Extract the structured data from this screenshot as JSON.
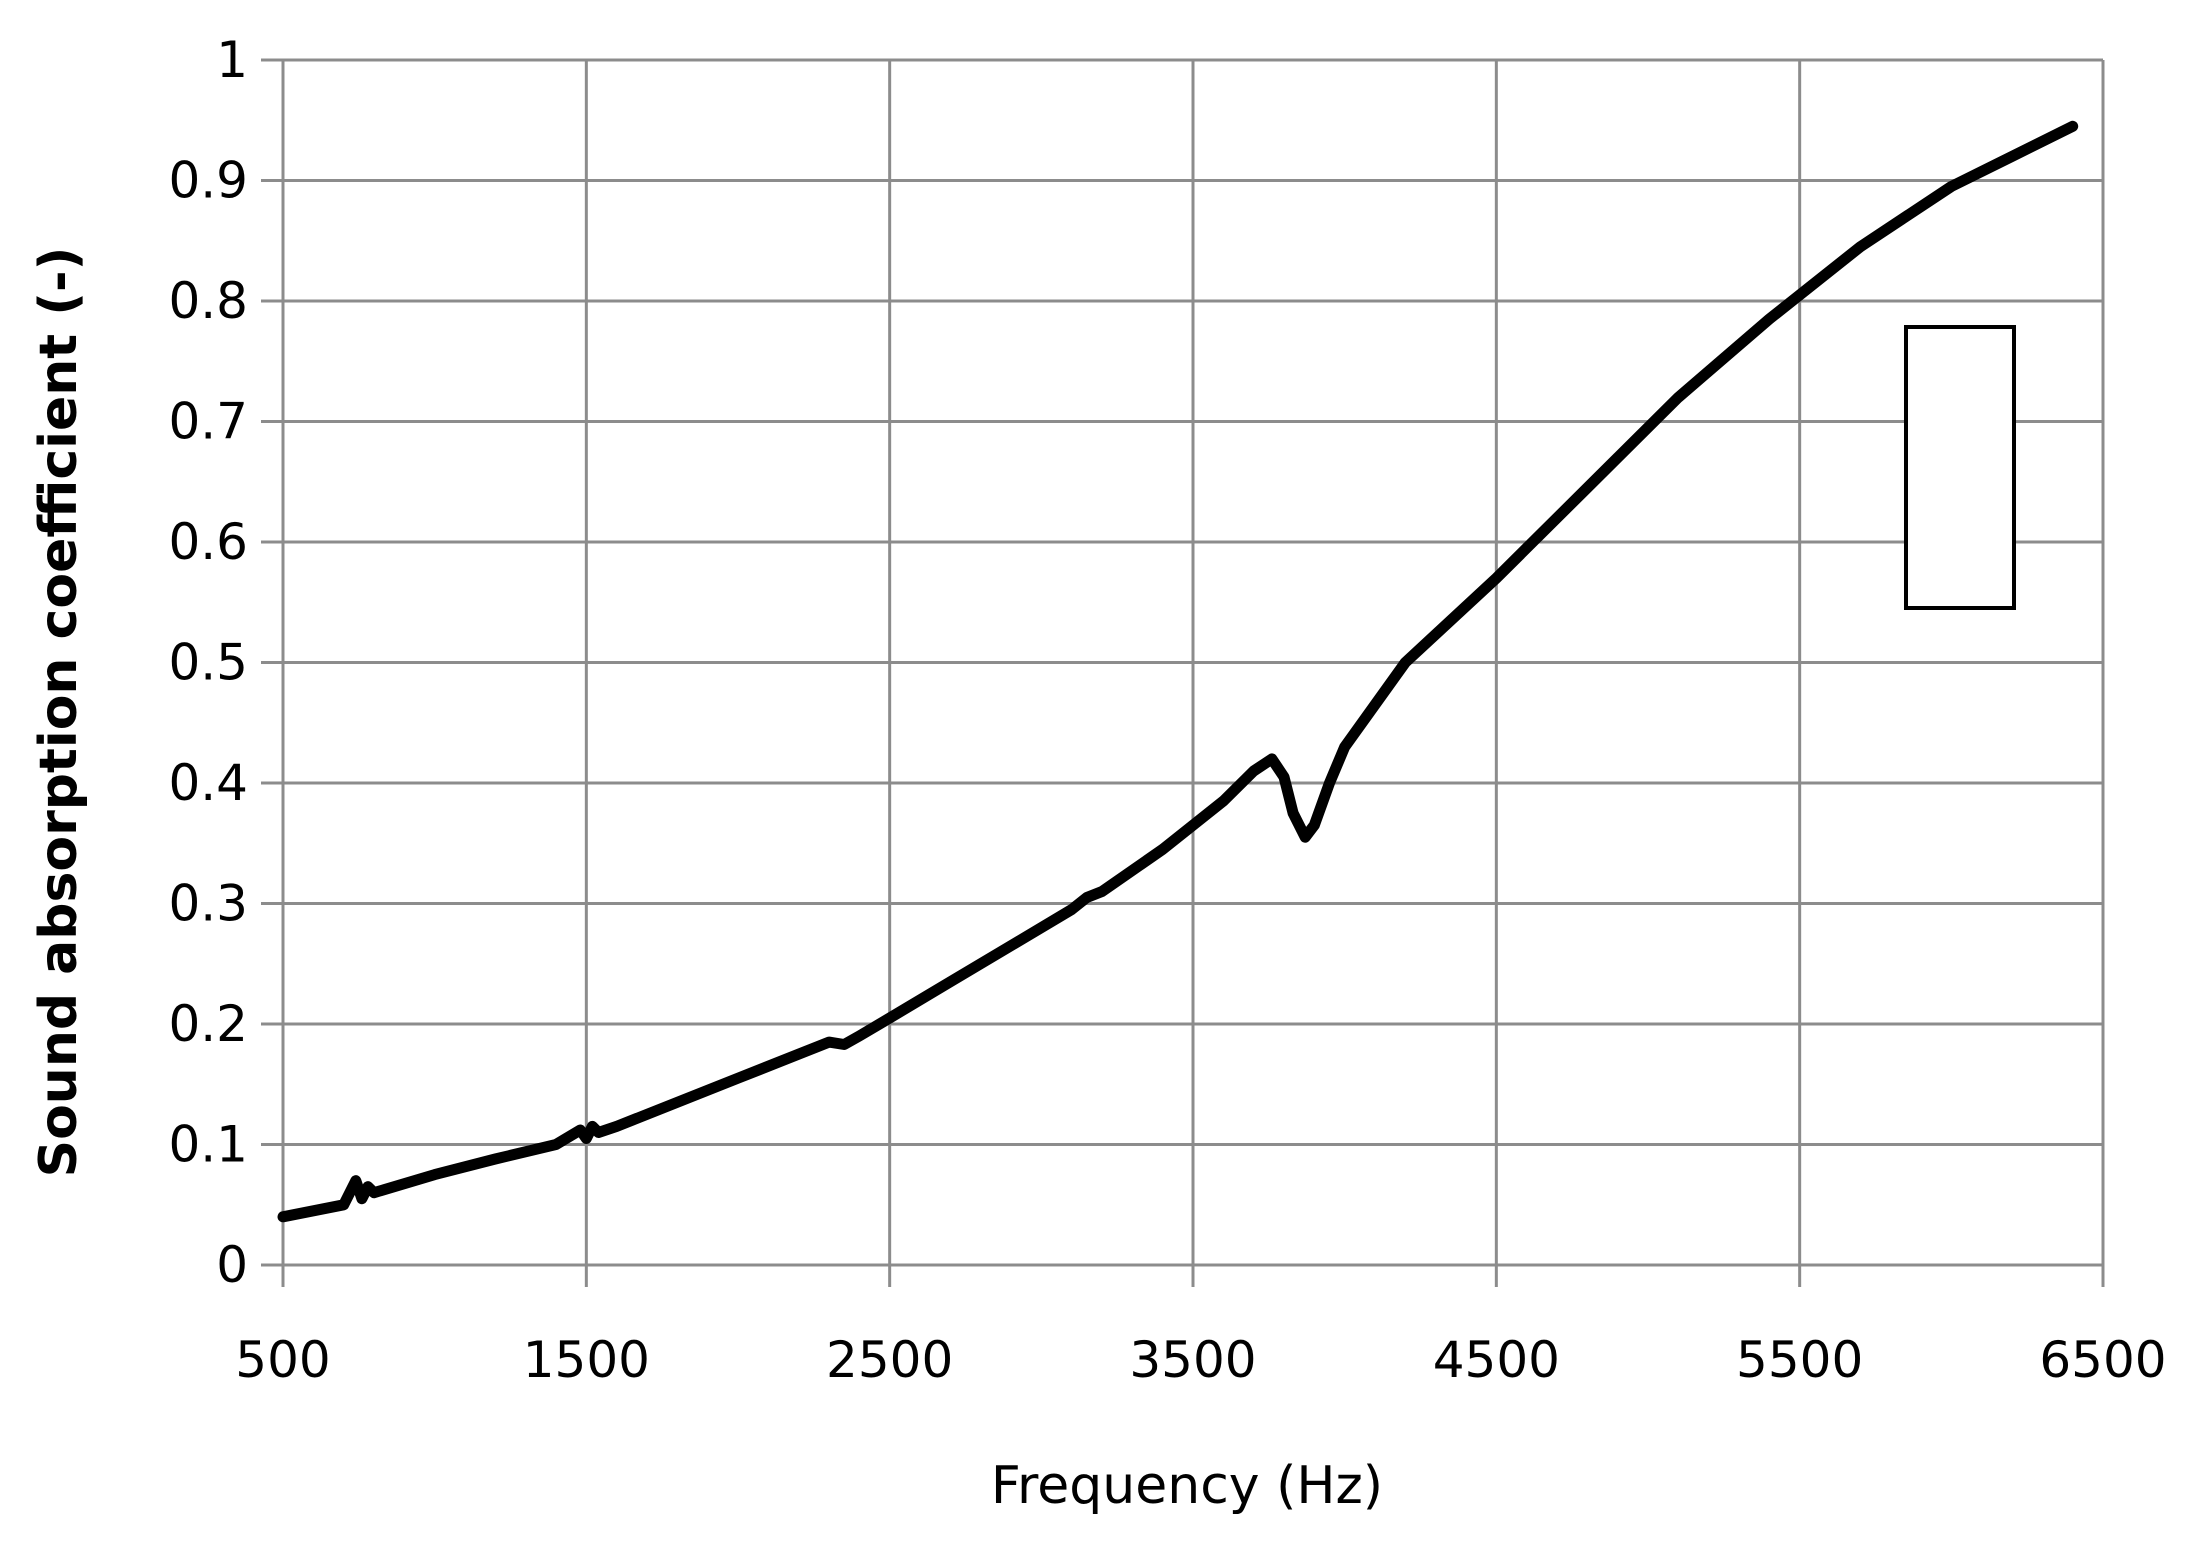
{
  "chart_data": {
    "type": "line",
    "title": "",
    "xlabel": "Frequency (Hz)",
    "ylabel": "Sound absorption coefficient  (-)",
    "xlim": [
      500,
      6500
    ],
    "ylim": [
      0,
      1
    ],
    "x_ticks": [
      500,
      1500,
      2500,
      3500,
      4500,
      5500,
      6500
    ],
    "y_ticks": [
      0,
      0.1,
      0.2,
      0.3,
      0.4,
      0.5,
      0.6,
      0.7,
      0.8,
      0.9,
      1
    ],
    "x_tick_labels": [
      "500",
      "1500",
      "2500",
      "3500",
      "4500",
      "5500",
      "6500"
    ],
    "y_tick_labels": [
      "0",
      "0.1",
      "0.2",
      "0.3",
      "0.4",
      "0.5",
      "0.6",
      "0.7",
      "0.8",
      "0.9",
      "1"
    ],
    "grid": true,
    "legend": "right, empty box",
    "series": [
      {
        "color": "#000000",
        "x": [
          500,
          700,
          740,
          760,
          780,
          800,
          1000,
          1200,
          1400,
          1480,
          1500,
          1520,
          1540,
          1600,
          1800,
          2000,
          2200,
          2300,
          2350,
          2400,
          2500,
          2700,
          2900,
          3100,
          3150,
          3200,
          3400,
          3600,
          3700,
          3760,
          3800,
          3830,
          3870,
          3900,
          3950,
          4000,
          4200,
          4500,
          4800,
          5100,
          5400,
          5700,
          6000,
          6200,
          6400
        ],
        "y": [
          0.04,
          0.05,
          0.07,
          0.055,
          0.065,
          0.06,
          0.075,
          0.088,
          0.1,
          0.112,
          0.105,
          0.115,
          0.11,
          0.115,
          0.135,
          0.155,
          0.175,
          0.185,
          0.183,
          0.19,
          0.205,
          0.235,
          0.265,
          0.295,
          0.305,
          0.31,
          0.345,
          0.385,
          0.41,
          0.42,
          0.405,
          0.375,
          0.355,
          0.365,
          0.4,
          0.43,
          0.5,
          0.57,
          0.645,
          0.72,
          0.785,
          0.845,
          0.895,
          0.92,
          0.945
        ]
      }
    ]
  }
}
